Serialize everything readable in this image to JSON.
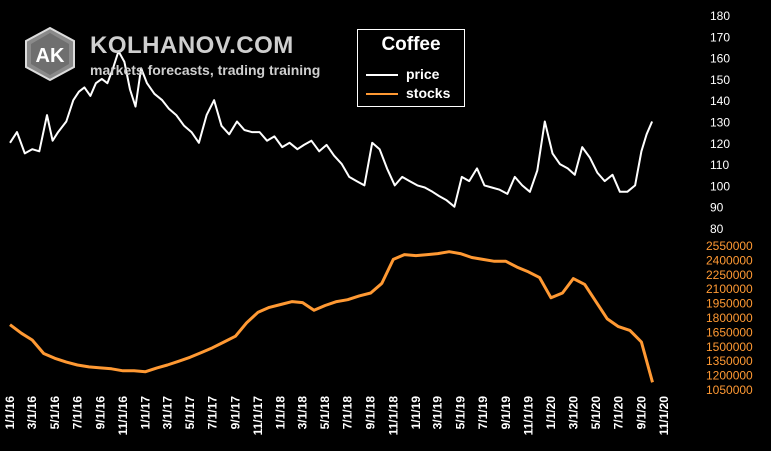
{
  "brand": {
    "logo_text": "AK",
    "name": "KOLHANOV.COM",
    "tagline": "markets forecasts, trading training"
  },
  "colors": {
    "background": "#000000",
    "price": "#ffffff",
    "stocks": "#ff9933",
    "stocks_axis": "#ff9933",
    "price_axis": "#ffffff"
  },
  "chart_data": {
    "type": "line",
    "title": "Coffee",
    "legend": {
      "placement": "top-center",
      "entries": [
        "price",
        "stocks"
      ]
    },
    "x_tick_labels": [
      "1/1/16",
      "3/1/16",
      "5/1/16",
      "7/1/16",
      "9/1/16",
      "11/1/16",
      "1/1/17",
      "3/1/17",
      "5/1/17",
      "7/1/17",
      "9/1/17",
      "11/1/17",
      "1/1/18",
      "3/1/18",
      "5/1/18",
      "7/1/18",
      "9/1/18",
      "11/1/18",
      "1/1/19",
      "3/1/19",
      "5/1/19",
      "7/1/19",
      "9/1/19",
      "11/1/19",
      "1/1/20",
      "3/1/20",
      "5/1/20",
      "7/1/20",
      "9/1/20",
      "11/1/20"
    ],
    "x_range": [
      "1/1/16",
      "11/1/20"
    ],
    "grid": false,
    "series": [
      {
        "name": "price",
        "axis": "upper-right",
        "ylim": [
          80,
          180
        ],
        "y_ticks": [
          80,
          90,
          100,
          110,
          120,
          130,
          140,
          150,
          160,
          170,
          180
        ],
        "x": [
          "1/1/16",
          "1/20/16",
          "2/10/16",
          "3/1/16",
          "3/20/16",
          "4/10/16",
          "4/25/16",
          "5/10/16",
          "6/1/16",
          "6/20/16",
          "7/5/16",
          "7/20/16",
          "8/5/16",
          "8/20/16",
          "9/5/16",
          "9/20/16",
          "10/5/16",
          "10/20/16",
          "11/5/16",
          "11/20/16",
          "12/5/16",
          "12/20/16",
          "1/5/17",
          "1/25/17",
          "2/15/17",
          "3/5/17",
          "3/25/17",
          "4/15/17",
          "5/5/17",
          "5/25/17",
          "6/15/17",
          "7/5/17",
          "7/25/17",
          "8/15/17",
          "9/5/17",
          "9/25/17",
          "10/15/17",
          "11/5/17",
          "11/25/17",
          "12/15/17",
          "1/5/18",
          "1/25/18",
          "2/15/18",
          "3/5/18",
          "3/25/18",
          "4/15/18",
          "5/5/18",
          "5/25/18",
          "6/15/18",
          "7/5/18",
          "7/25/18",
          "8/15/18",
          "9/5/18",
          "9/25/18",
          "10/15/18",
          "11/5/18",
          "11/25/18",
          "12/15/18",
          "1/5/19",
          "1/25/19",
          "2/15/19",
          "3/5/19",
          "3/25/19",
          "4/15/19",
          "5/5/19",
          "5/25/19",
          "6/15/19",
          "7/5/19",
          "7/25/19",
          "8/15/19",
          "9/5/19",
          "9/25/19",
          "10/15/19",
          "11/5/19",
          "11/25/19",
          "12/15/19",
          "1/5/20",
          "1/25/20",
          "2/15/20",
          "3/5/20",
          "3/25/20",
          "4/15/20",
          "5/5/20",
          "5/25/20",
          "6/15/20",
          "7/5/20",
          "7/25/20",
          "8/15/20",
          "9/1/20",
          "9/15/20",
          "9/30/20"
        ],
        "values": [
          120,
          125,
          115,
          117,
          116,
          133,
          121,
          125,
          130,
          140,
          144,
          146,
          142,
          148,
          150,
          148,
          155,
          163,
          158,
          145,
          137,
          155,
          148,
          143,
          140,
          136,
          133,
          128,
          125,
          120,
          133,
          140,
          128,
          124,
          130,
          126,
          125,
          125,
          121,
          123,
          118,
          120,
          117,
          119,
          121,
          116,
          119,
          114,
          110,
          104,
          102,
          100,
          120,
          117,
          108,
          100,
          104,
          102,
          100,
          99,
          97,
          95,
          93,
          90,
          104,
          102,
          108,
          100,
          99,
          98,
          96,
          104,
          100,
          97,
          107,
          130,
          115,
          110,
          108,
          105,
          118,
          113,
          106,
          102,
          105,
          97,
          97,
          100,
          116,
          124,
          130
        ]
      },
      {
        "name": "stocks",
        "axis": "lower-right",
        "ylim": [
          1050000,
          2550000
        ],
        "y_ticks": [
          1050000,
          1200000,
          1350000,
          1500000,
          1650000,
          1800000,
          1950000,
          2100000,
          2250000,
          2400000,
          2550000
        ],
        "x": [
          "1/1/16",
          "2/1/16",
          "3/1/16",
          "4/1/16",
          "5/1/16",
          "6/1/16",
          "7/1/16",
          "8/1/16",
          "9/1/16",
          "10/1/16",
          "11/1/16",
          "12/1/16",
          "1/1/17",
          "2/1/17",
          "3/1/17",
          "4/1/17",
          "5/1/17",
          "6/1/17",
          "7/1/17",
          "8/1/17",
          "9/1/17",
          "10/1/17",
          "11/1/17",
          "12/1/17",
          "1/1/18",
          "2/1/18",
          "3/1/18",
          "4/1/18",
          "5/1/18",
          "6/1/18",
          "7/1/18",
          "8/1/18",
          "9/1/18",
          "10/1/18",
          "11/1/18",
          "12/1/18",
          "1/1/19",
          "2/1/19",
          "3/1/19",
          "4/1/19",
          "5/1/19",
          "6/1/19",
          "7/1/19",
          "8/1/19",
          "9/1/19",
          "10/1/19",
          "11/1/19",
          "12/1/19",
          "1/1/20",
          "2/1/20",
          "3/1/20",
          "4/1/20",
          "5/1/20",
          "6/1/20",
          "7/1/20",
          "8/1/20",
          "9/1/20",
          "10/1/20"
        ],
        "values": [
          1720000,
          1630000,
          1560000,
          1420000,
          1370000,
          1330000,
          1300000,
          1280000,
          1270000,
          1260000,
          1240000,
          1240000,
          1230000,
          1270000,
          1300000,
          1340000,
          1380000,
          1430000,
          1480000,
          1540000,
          1600000,
          1740000,
          1850000,
          1900000,
          1930000,
          1960000,
          1950000,
          1870000,
          1920000,
          1960000,
          1980000,
          2020000,
          2050000,
          2150000,
          2400000,
          2450000,
          2440000,
          2450000,
          2460000,
          2480000,
          2460000,
          2420000,
          2400000,
          2380000,
          2380000,
          2320000,
          2270000,
          2210000,
          2000000,
          2050000,
          2200000,
          2140000,
          1960000,
          1780000,
          1700000,
          1660000,
          1540000,
          1120000
        ]
      }
    ]
  }
}
